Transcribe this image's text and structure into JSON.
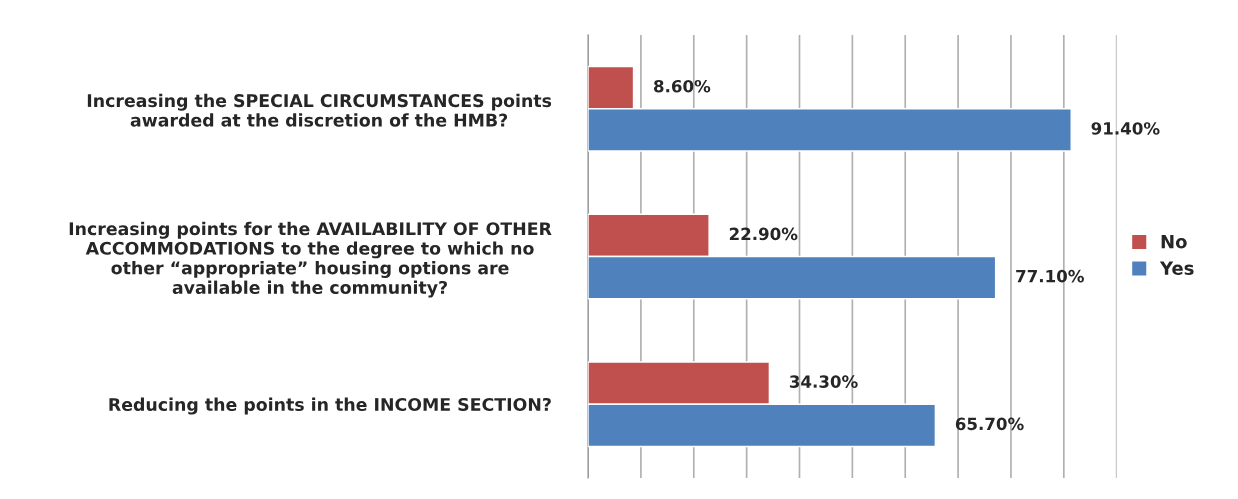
{
  "chart_data": {
    "type": "bar",
    "orientation": "horizontal",
    "categories": [
      "Increasing the SPECIAL CIRCUMSTANCES points\nawarded at the discretion of the HMB?",
      "Increasing points for the AVAILABILITY OF OTHER\nACCOMMODATIONS to the degree to which no\nother “appropriate” housing options are\navailable in the community?",
      "Reducing the points in the INCOME SECTION?"
    ],
    "series": [
      {
        "name": "No",
        "color": "#c0504d",
        "values": [
          8.6,
          22.9,
          34.3
        ],
        "value_labels": [
          "8.60%",
          "22.90%",
          "34.30%"
        ]
      },
      {
        "name": "Yes",
        "color": "#4f81bd",
        "values": [
          91.4,
          77.1,
          65.7
        ],
        "value_labels": [
          "91.40%",
          "77.10%",
          "65.70%"
        ]
      }
    ],
    "xlim": [
      0,
      100
    ],
    "xticks": [
      {
        "value": 0,
        "label": null
      },
      {
        "value": 10,
        "label": null
      },
      {
        "value": 20,
        "label": null
      },
      {
        "value": 30,
        "label": null
      },
      {
        "value": 40,
        "label": null
      },
      {
        "value": 50,
        "label": null
      },
      {
        "value": 60,
        "label": null
      },
      {
        "value": 70,
        "label": null
      },
      {
        "value": 80,
        "label": null
      },
      {
        "value": 90,
        "label": null
      },
      {
        "value": 100,
        "label": null
      }
    ],
    "grid": "x",
    "legend": "right",
    "tick_labels": "y"
  }
}
